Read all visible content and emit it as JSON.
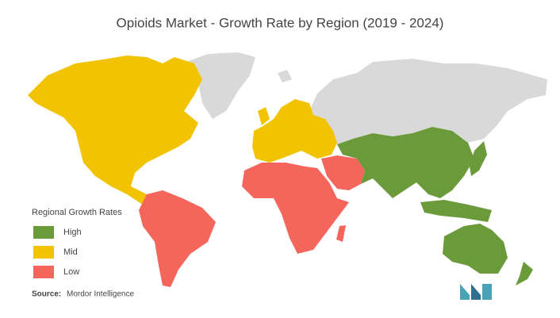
{
  "title": "Opioids Market  - Growth Rate by Region (2019 - 2024)",
  "legend": {
    "title": "Regional Growth Rates",
    "items": [
      {
        "label": "High",
        "color": "#6b9a3a"
      },
      {
        "label": "Mid",
        "color": "#f2c300"
      },
      {
        "label": "Low",
        "color": "#f4655c"
      }
    ]
  },
  "source": {
    "label": "Source:",
    "text": "Mordor Intelligence"
  }
}
